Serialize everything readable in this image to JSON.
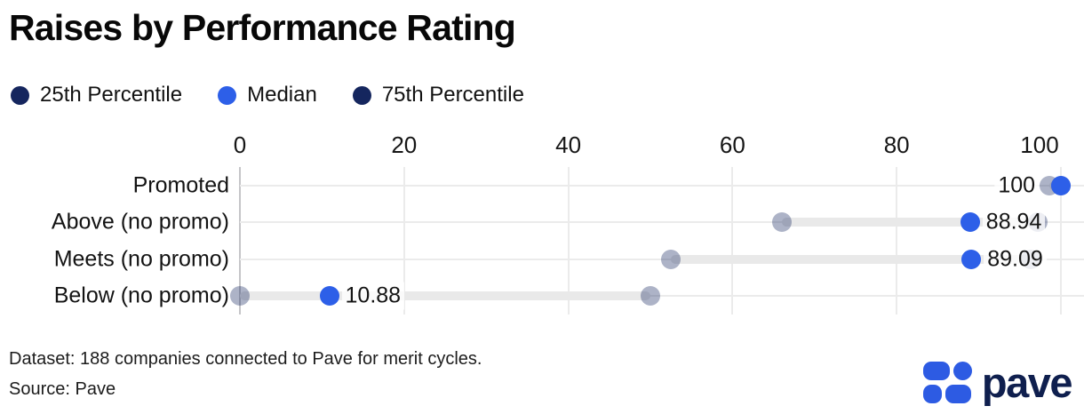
{
  "title": "Raises by Performance Rating",
  "legend": [
    {
      "label": "25th Percentile",
      "color": "#15265e"
    },
    {
      "label": "Median",
      "color": "#2d5fe8"
    },
    {
      "label": "75th Percentile",
      "color": "#15265e"
    }
  ],
  "chart_data": {
    "type": "dumbbell",
    "title": "Raises by Performance Rating",
    "orientation": "horizontal",
    "x_axis": {
      "min": 0,
      "max": 100,
      "ticks": [
        0,
        20,
        40,
        60,
        80,
        100
      ],
      "grid": true
    },
    "categories": [
      "Promoted",
      "Above (no promo)",
      "Meets (no promo)",
      "Below (no promo)"
    ],
    "series": [
      {
        "name": "25th Percentile",
        "values": [
          98.6,
          66,
          52.5,
          0
        ]
      },
      {
        "name": "Median",
        "values": [
          100,
          88.94,
          89.09,
          10.88
        ]
      },
      {
        "name": "75th Percentile",
        "values": [
          100,
          97.2,
          96.3,
          50
        ]
      }
    ],
    "value_labels": [
      "100",
      "88.94",
      "89.09",
      "10.88"
    ],
    "value_label_side": [
      "left",
      "right",
      "right",
      "right"
    ],
    "legend_position": "top"
  },
  "footer": {
    "dataset": "Dataset: 188 companies connected to Pave for merit cycles.",
    "source": "Source: Pave"
  },
  "logo": {
    "text": "pave"
  },
  "colors": {
    "median": "#2d5fe8",
    "percentile": "#15265e",
    "percentile_faded": "rgba(21,38,94,0.35)",
    "band": "#e9e9e9",
    "grid": "#ebebeb",
    "zero_line": "#c5c5c8",
    "logo_blue": "#2d5be3",
    "logo_navy": "#0f1f4e"
  }
}
